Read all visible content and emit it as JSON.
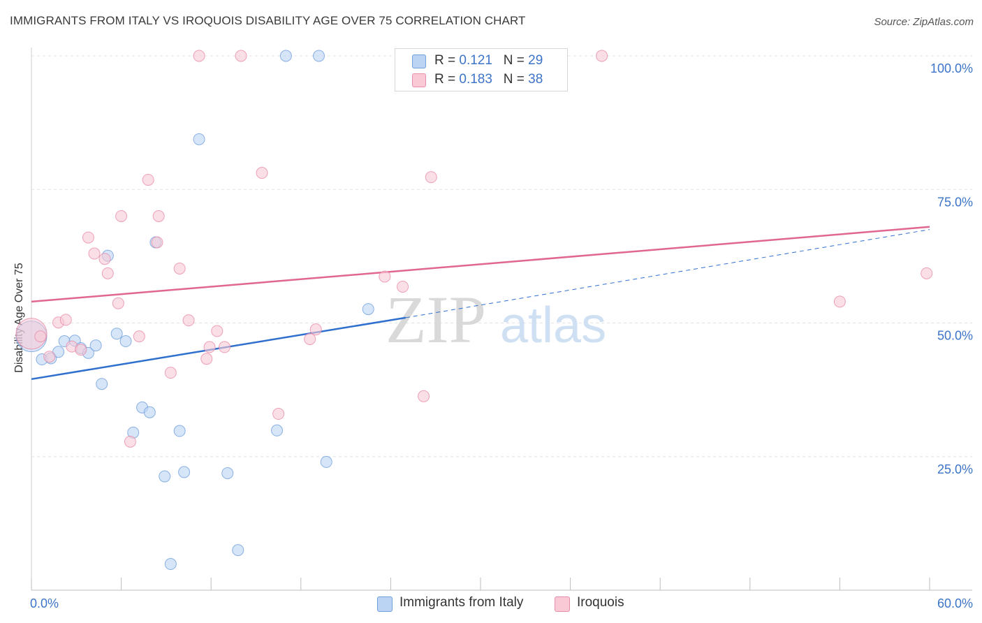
{
  "title": "IMMIGRANTS FROM ITALY VS IROQUOIS DISABILITY AGE OVER 75 CORRELATION CHART",
  "source": "Source: ZipAtlas.com",
  "watermark": {
    "zip": "ZIP",
    "atlas": "atlas"
  },
  "legend": {
    "rows": [
      {
        "r_label": "R = ",
        "r_value": "0.121",
        "n_label": "N = ",
        "n_value": "29",
        "color": "#bcd4f3",
        "border": "#6f9fdc"
      },
      {
        "r_label": "R = ",
        "r_value": "0.183",
        "n_label": "N = ",
        "n_value": "38",
        "color": "#f9c9d6",
        "border": "#e88ca9"
      }
    ]
  },
  "bottom_legend": [
    {
      "label": "Immigrants from Italy",
      "color": "#bcd4f3",
      "border": "#6f9fdc"
    },
    {
      "label": "Iroquois",
      "color": "#f9c9d6",
      "border": "#e88ca9"
    }
  ],
  "chart_data": {
    "type": "scatter",
    "title": "IMMIGRANTS FROM ITALY VS IROQUOIS DISABILITY AGE OVER 75 CORRELATION CHART",
    "xlabel": "",
    "ylabel": "Disability Age Over 75",
    "xlim": [
      0,
      60
    ],
    "ylim": [
      0,
      100
    ],
    "x_tick_labels": [
      "0.0%",
      "60.0%"
    ],
    "y_tick_labels": [
      "25.0%",
      "50.0%",
      "75.0%",
      "100.0%"
    ],
    "y_ticks": [
      25,
      50,
      75,
      100
    ],
    "grid": true,
    "legend_position": "top-center",
    "series": [
      {
        "name": "Immigrants from Italy",
        "color": "#6f9fdc",
        "fill": "#bcd4f3",
        "trend_color": "#2f6fce",
        "R": 0.121,
        "N": 29,
        "trend": {
          "x0": 0,
          "y0": 39.5,
          "x1": 25,
          "y1": 51.0,
          "dashed_to_x": 60,
          "dashed_to_y": 67.5
        },
        "points": [
          [
            0,
            47.5,
            "large"
          ],
          [
            0.7,
            43.2
          ],
          [
            1.3,
            43.4
          ],
          [
            1.8,
            44.6
          ],
          [
            2.2,
            46.6
          ],
          [
            2.9,
            46.7
          ],
          [
            3.3,
            45.3
          ],
          [
            3.8,
            44.4
          ],
          [
            4.3,
            45.8
          ],
          [
            4.7,
            38.6
          ],
          [
            5.1,
            62.6
          ],
          [
            5.7,
            48.0
          ],
          [
            6.3,
            46.6
          ],
          [
            6.8,
            29.5
          ],
          [
            7.4,
            34.2
          ],
          [
            7.9,
            33.3
          ],
          [
            8.3,
            65.1
          ],
          [
            8.9,
            21.3
          ],
          [
            9.3,
            4.9
          ],
          [
            9.9,
            29.8
          ],
          [
            10.2,
            22.1
          ],
          [
            11.2,
            84.4
          ],
          [
            13.1,
            21.9
          ],
          [
            13.8,
            7.5
          ],
          [
            16.4,
            29.9
          ],
          [
            17.0,
            100.0
          ],
          [
            19.2,
            100.0
          ],
          [
            19.7,
            24.0
          ],
          [
            22.5,
            52.6
          ]
        ]
      },
      {
        "name": "Iroquois",
        "color": "#e88ca9",
        "fill": "#f9c9d6",
        "trend_color": "#e0678f",
        "R": 0.183,
        "N": 38,
        "trend": {
          "x0": 0,
          "y0": 54.0,
          "x1": 60,
          "y1": 68.0
        },
        "points": [
          [
            0,
            48.0,
            "large"
          ],
          [
            0.6,
            47.5
          ],
          [
            1.2,
            43.7
          ],
          [
            1.8,
            50.1
          ],
          [
            2.3,
            50.6
          ],
          [
            2.7,
            45.6
          ],
          [
            3.3,
            45.0
          ],
          [
            3.8,
            66.0
          ],
          [
            4.2,
            63.0
          ],
          [
            4.9,
            62.0
          ],
          [
            5.1,
            59.3
          ],
          [
            5.8,
            53.7
          ],
          [
            6.0,
            70.0
          ],
          [
            6.6,
            27.8
          ],
          [
            7.2,
            47.5
          ],
          [
            7.8,
            76.8
          ],
          [
            8.4,
            65.1
          ],
          [
            8.5,
            70.0
          ],
          [
            9.3,
            40.7
          ],
          [
            9.9,
            60.2
          ],
          [
            10.5,
            50.5
          ],
          [
            11.2,
            100.0
          ],
          [
            11.7,
            43.3
          ],
          [
            11.9,
            45.5
          ],
          [
            12.4,
            48.5
          ],
          [
            12.9,
            45.5
          ],
          [
            14.0,
            100.0
          ],
          [
            15.4,
            78.1
          ],
          [
            16.5,
            33.0
          ],
          [
            18.6,
            47.0
          ],
          [
            19.0,
            48.8
          ],
          [
            23.6,
            58.7
          ],
          [
            24.8,
            56.8
          ],
          [
            26.2,
            36.3
          ],
          [
            26.7,
            77.3
          ],
          [
            38.1,
            100.0
          ],
          [
            54.0,
            54.0
          ],
          [
            59.8,
            59.3
          ]
        ]
      }
    ]
  }
}
